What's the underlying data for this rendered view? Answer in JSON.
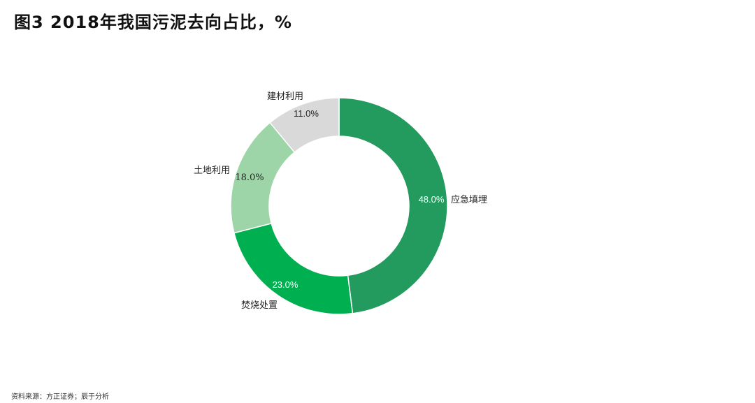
{
  "title": "图3   2018年我国污泥去向占比，%",
  "source": "资料来源：方正证券；辰于分析",
  "chart_data": {
    "type": "pie",
    "variant": "donut",
    "title": "图3   2018年我国污泥去向占比，%",
    "categories": [
      "应急填埋",
      "焚烧处置",
      "土地利用",
      "建材利用"
    ],
    "values": [
      48.0,
      23.0,
      18.0,
      11.0
    ],
    "value_labels": [
      "48.0%",
      "23.0%",
      "18.0%",
      "11.0%"
    ],
    "colors": [
      "#239a5e",
      "#00b050",
      "#9dd5a8",
      "#d9d9d9"
    ],
    "label_colors": [
      "#ffffff",
      "#ffffff",
      "#222222",
      "#222222"
    ],
    "start": "top",
    "direction": "clockwise",
    "legend": "none"
  }
}
